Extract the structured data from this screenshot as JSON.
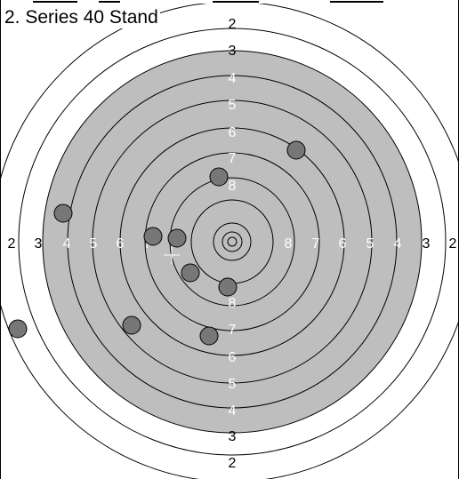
{
  "series": {
    "title": "2. Series 40 Stand"
  },
  "target": {
    "colors": {
      "background": "#ffffff",
      "black_zone": "#bebebe",
      "ring_line": "#000000",
      "outer_label": "#000000",
      "inner_label": "#ffffff",
      "shot_fill": "#777777",
      "shot_stroke": "#000000",
      "marker": "#ffffff"
    },
    "labels": {
      "top": [
        "2",
        "3",
        "4",
        "5",
        "6",
        "7",
        "8"
      ],
      "bottom": [
        "8",
        "7",
        "6",
        "5",
        "4",
        "3",
        "2"
      ],
      "left": [
        "2",
        "3",
        "4",
        "5",
        "6",
        "7"
      ],
      "right": [
        "8",
        "7",
        "6",
        "5",
        "4",
        "3",
        "2"
      ]
    },
    "shot_count": 10,
    "has_group_center_marker": true
  }
}
